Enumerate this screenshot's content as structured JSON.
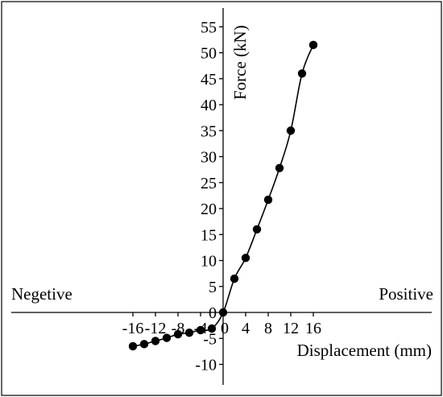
{
  "chart_data": {
    "type": "line",
    "title": "",
    "xlabel": "Displacement (mm)",
    "ylabel": "Force (kN)",
    "xlim": [
      -18,
      19
    ],
    "ylim": [
      -12,
      58
    ],
    "x_ticks": [
      -16,
      -12,
      -8,
      -4,
      0,
      4,
      8,
      12,
      16
    ],
    "y_ticks": [
      -10,
      -5,
      0,
      5,
      10,
      15,
      20,
      25,
      30,
      35,
      40,
      45,
      50,
      55
    ],
    "annotations": {
      "left": "Negetive",
      "right": "Positive"
    },
    "grid": false,
    "series": [
      {
        "points": [
          [
            -16,
            -6.5
          ],
          [
            -14,
            -6.1
          ],
          [
            -12,
            -5.5
          ],
          [
            -10,
            -4.9
          ],
          [
            -8,
            -4.2
          ],
          [
            -6,
            -3.9
          ],
          [
            -4,
            -3.4
          ],
          [
            -2,
            -3.1
          ],
          [
            0,
            0
          ],
          [
            2,
            6.5
          ],
          [
            4,
            10.5
          ],
          [
            6,
            16
          ],
          [
            8,
            21.7
          ],
          [
            10,
            27.8
          ],
          [
            12,
            35
          ],
          [
            14,
            46
          ],
          [
            16,
            51.5
          ]
        ]
      }
    ]
  }
}
